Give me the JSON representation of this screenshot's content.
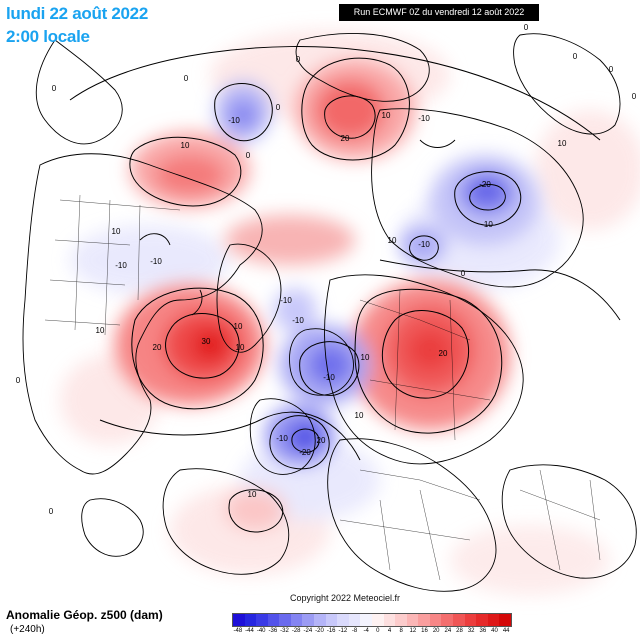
{
  "header": {
    "date_line": "lundi 22 août 2022",
    "time_line": "2:00 locale",
    "run_info": "Run ECMWF 0Z du vendredi 12 août 2022"
  },
  "footer": {
    "product": "Anomalie Géop. z500 (dam)",
    "lead_time": "(+240h)",
    "copyright": "Copyright 2022 Meteociel.fr"
  },
  "legend": {
    "labels": [
      "-48",
      "-44",
      "-40",
      "-36",
      "-32",
      "-28",
      "-24",
      "-20",
      "-16",
      "-12",
      "-8",
      "-4",
      "0",
      "4",
      "8",
      "12",
      "16",
      "20",
      "24",
      "28",
      "32",
      "36",
      "40",
      "44"
    ],
    "colors": [
      "#1e10d8",
      "#2626e0",
      "#3a3ae6",
      "#5252ea",
      "#6a6aee",
      "#8484f2",
      "#9c9cf4",
      "#b4b4f8",
      "#c8c8fa",
      "#dadafc",
      "#e6e6fd",
      "#f4f4fe",
      "#fef2f2",
      "#fde0e0",
      "#fccccc",
      "#fbb6b6",
      "#f99e9e",
      "#f78686",
      "#f46e6e",
      "#f05656",
      "#ec3e3e",
      "#e62a2a",
      "#de1818",
      "#d40808"
    ]
  },
  "contour_labels": [
    {
      "text": "0"
    },
    {
      "text": "0"
    },
    {
      "text": "0"
    },
    {
      "text": "0"
    },
    {
      "text": "0"
    },
    {
      "text": "0"
    },
    {
      "text": "0"
    },
    {
      "text": "0"
    },
    {
      "text": "0"
    },
    {
      "text": "0"
    },
    {
      "text": "0"
    },
    {
      "text": "0"
    },
    {
      "text": "10"
    },
    {
      "text": "10"
    },
    {
      "text": "-10"
    },
    {
      "text": "20"
    },
    {
      "text": "-10"
    },
    {
      "text": "-20"
    },
    {
      "text": "-10"
    },
    {
      "text": "-10"
    },
    {
      "text": "-10"
    },
    {
      "text": "10"
    },
    {
      "text": "20"
    },
    {
      "text": "30"
    },
    {
      "text": "10"
    },
    {
      "text": "10"
    },
    {
      "text": "10"
    },
    {
      "text": "-10"
    },
    {
      "text": "-10"
    },
    {
      "text": "-10"
    },
    {
      "text": "20"
    },
    {
      "text": "10"
    },
    {
      "text": "20"
    },
    {
      "text": "-10"
    },
    {
      "text": "-20"
    },
    {
      "text": "10"
    },
    {
      "text": "10"
    },
    {
      "text": "-10"
    },
    {
      "text": "10"
    },
    {
      "text": "10"
    }
  ]
}
